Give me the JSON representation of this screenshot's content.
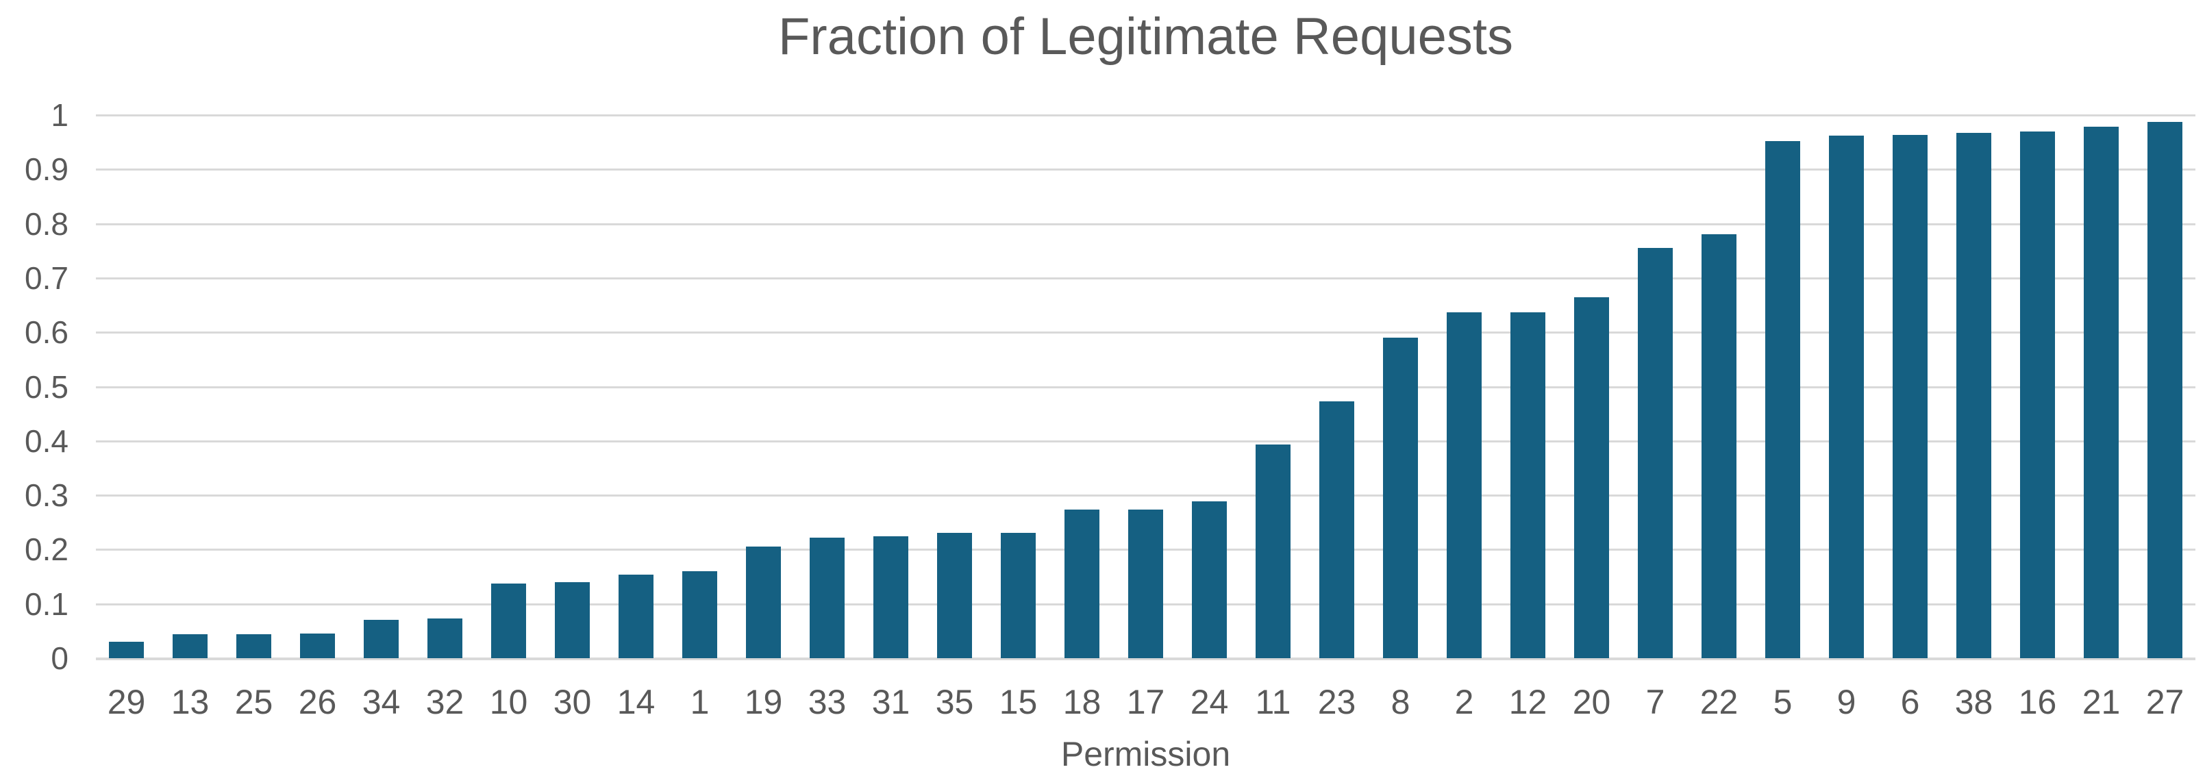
{
  "chart_data": {
    "type": "bar",
    "title": "Fraction of Legitimate Requests",
    "xlabel": "Permission",
    "ylabel": "",
    "ylim": [
      0,
      1
    ],
    "grid": true,
    "legend": false,
    "y_tick_labels": [
      "0",
      "0.1",
      "0.2",
      "0.3",
      "0.4",
      "0.5",
      "0.6",
      "0.7",
      "0.8",
      "0.9",
      "1"
    ],
    "categories": [
      "29",
      "13",
      "25",
      "26",
      "34",
      "32",
      "10",
      "30",
      "14",
      "1",
      "19",
      "33",
      "31",
      "35",
      "15",
      "18",
      "17",
      "24",
      "11",
      "23",
      "8",
      "2",
      "12",
      "20",
      "7",
      "22",
      "5",
      "9",
      "6",
      "38",
      "16",
      "21",
      "27"
    ],
    "values": [
      0.03,
      0.044,
      0.044,
      0.046,
      0.071,
      0.073,
      0.137,
      0.14,
      0.154,
      0.16,
      0.206,
      0.222,
      0.225,
      0.231,
      0.231,
      0.274,
      0.274,
      0.289,
      0.393,
      0.473,
      0.59,
      0.637,
      0.637,
      0.665,
      0.755,
      0.78,
      0.952,
      0.962,
      0.964,
      0.967,
      0.97,
      0.978,
      0.988
    ],
    "colors": {
      "bar": "#156082",
      "grid": "#d9d9d9",
      "text": "#595959",
      "background": "#ffffff"
    }
  }
}
